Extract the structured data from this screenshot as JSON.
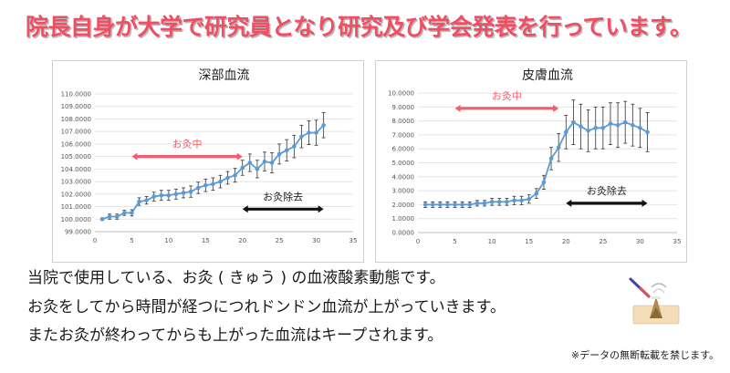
{
  "header": {
    "title": "院長自身が大学で研究員となり研究及び学会発表を行っています。"
  },
  "body": {
    "lines": [
      "当院で使用している、お灸 ( きゅう ) の血液酸素動態です。",
      "お灸をしてから時間が経つにつれドンドン血流が上がっていきます。",
      "またお灸が終わってからも上がった血流はキープされます。"
    ]
  },
  "notice": "※データの無断転載を禁じます。",
  "colors": {
    "headline": "#ef4e63",
    "line": "#5b9bd5",
    "during_arrow": "#f25e6e",
    "after_arrow": "#111111"
  },
  "chart_data": [
    {
      "type": "line",
      "title": "深部血流",
      "ylim": [
        99,
        110
      ],
      "yticks": [
        "99.0000",
        "100.0000",
        "101.0000",
        "102.0000",
        "103.0000",
        "104.0000",
        "105.0000",
        "106.0000",
        "107.0000",
        "108.0000",
        "109.0000",
        "110.0000"
      ],
      "xlim": [
        0,
        35
      ],
      "xticks": [
        "0",
        "5",
        "10",
        "15",
        "20",
        "25",
        "30",
        "35"
      ],
      "grid": true,
      "series": [
        {
          "name": "深部血流",
          "x": [
            1,
            2,
            3,
            4,
            5,
            6,
            7,
            8,
            9,
            10,
            11,
            12,
            13,
            14,
            15,
            16,
            17,
            18,
            19,
            20,
            21,
            22,
            23,
            24,
            25,
            26,
            27,
            28,
            29,
            30,
            31
          ],
          "values": [
            100.0,
            100.2,
            100.2,
            100.5,
            100.5,
            101.4,
            101.5,
            101.8,
            101.9,
            101.9,
            102.0,
            102.1,
            102.2,
            102.5,
            102.7,
            102.8,
            103.0,
            103.3,
            103.5,
            104.1,
            104.5,
            104.0,
            104.6,
            104.5,
            105.2,
            105.5,
            105.8,
            106.6,
            106.9,
            106.9,
            107.5
          ],
          "errors": [
            0.1,
            0.2,
            0.2,
            0.2,
            0.25,
            0.3,
            0.3,
            0.35,
            0.4,
            0.4,
            0.4,
            0.4,
            0.45,
            0.45,
            0.5,
            0.5,
            0.5,
            0.5,
            0.55,
            0.6,
            0.7,
            0.7,
            0.75,
            0.8,
            0.8,
            0.85,
            0.9,
            0.9,
            0.95,
            1.0,
            1.0
          ]
        }
      ],
      "annotations": [
        {
          "label": "お灸中",
          "from": 5,
          "to": 20,
          "at": 105,
          "style": "during"
        },
        {
          "label": "お灸除去",
          "from": 20,
          "to": 31,
          "at": 100.8,
          "style": "after"
        }
      ]
    },
    {
      "type": "line",
      "title": "皮膚血流",
      "ylim": [
        0,
        10
      ],
      "yticks": [
        "0.0000",
        "1.0000",
        "2.0000",
        "3.0000",
        "4.0000",
        "5.0000",
        "6.0000",
        "7.0000",
        "8.0000",
        "9.0000",
        "10.0000"
      ],
      "xlim": [
        0,
        35
      ],
      "xticks": [
        "0",
        "5",
        "10",
        "15",
        "20",
        "25",
        "30",
        "35"
      ],
      "grid": true,
      "series": [
        {
          "name": "皮膚血流",
          "x": [
            1,
            2,
            3,
            4,
            5,
            6,
            7,
            8,
            9,
            10,
            11,
            12,
            13,
            14,
            15,
            16,
            17,
            18,
            19,
            20,
            21,
            22,
            23,
            24,
            25,
            26,
            27,
            28,
            29,
            30,
            31
          ],
          "values": [
            2.0,
            2.0,
            2.0,
            2.0,
            2.0,
            2.0,
            2.0,
            2.1,
            2.1,
            2.2,
            2.2,
            2.2,
            2.3,
            2.3,
            2.4,
            2.8,
            3.6,
            5.3,
            6.1,
            7.2,
            7.9,
            7.6,
            7.3,
            7.5,
            7.5,
            7.8,
            7.7,
            7.9,
            7.7,
            7.5,
            7.2
          ],
          "errors": [
            0.2,
            0.2,
            0.2,
            0.2,
            0.2,
            0.2,
            0.2,
            0.2,
            0.2,
            0.25,
            0.25,
            0.25,
            0.3,
            0.3,
            0.3,
            0.35,
            0.5,
            0.8,
            1.0,
            1.2,
            1.6,
            1.6,
            1.5,
            1.5,
            1.5,
            1.5,
            1.6,
            1.5,
            1.5,
            1.4,
            1.4
          ]
        }
      ],
      "annotations": [
        {
          "label": "お灸中",
          "from": 5,
          "to": 19,
          "at": 8.9,
          "style": "during"
        },
        {
          "label": "お灸除去",
          "from": 20,
          "to": 31,
          "at": 2.1,
          "style": "after"
        }
      ]
    }
  ]
}
